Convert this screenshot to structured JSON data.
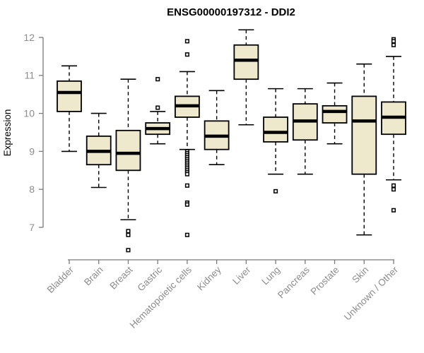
{
  "chart_data": {
    "type": "boxplot",
    "title": "ENSG00000197312 - DDI2",
    "xlabel": "",
    "ylabel": "Expression",
    "y_ticks": [
      7,
      8,
      9,
      10,
      11,
      12
    ],
    "ylim": [
      6.4,
      12.2
    ],
    "grid": false,
    "legend": "none",
    "categories": [
      "Bladder",
      "Brain",
      "Breast",
      "Gastric",
      "Hematopoietic cells",
      "Kidney",
      "Liver",
      "Lung",
      "Pancreas",
      "Prostate",
      "Skin",
      "Unknown / Other"
    ],
    "boxes": [
      {
        "label": "Bladder",
        "low": 9.0,
        "q1": 10.05,
        "median": 10.55,
        "q3": 10.85,
        "high": 11.25,
        "outliers": []
      },
      {
        "label": "Brain",
        "low": 8.05,
        "q1": 8.65,
        "median": 9.0,
        "q3": 9.4,
        "high": 10.0,
        "outliers": []
      },
      {
        "label": "Breast",
        "low": 7.2,
        "q1": 8.5,
        "median": 8.95,
        "q3": 9.55,
        "high": 10.9,
        "outliers": [
          6.9,
          6.8,
          6.4
        ]
      },
      {
        "label": "Gastric",
        "low": 9.2,
        "q1": 9.45,
        "median": 9.6,
        "q3": 9.75,
        "high": 10.05,
        "outliers": [
          10.9,
          10.15
        ]
      },
      {
        "label": "Hematopoietic cells",
        "low": 9.05,
        "q1": 9.9,
        "median": 10.2,
        "q3": 10.45,
        "high": 11.1,
        "outliers": [
          11.9,
          11.55,
          9.0,
          8.95,
          8.9,
          8.85,
          8.8,
          8.75,
          8.7,
          8.65,
          8.6,
          8.55,
          8.5,
          8.45,
          8.4,
          8.1,
          7.65,
          7.6,
          6.8
        ]
      },
      {
        "label": "Kidney",
        "low": 8.65,
        "q1": 9.05,
        "median": 9.4,
        "q3": 9.8,
        "high": 10.6,
        "outliers": []
      },
      {
        "label": "Liver",
        "low": 9.7,
        "q1": 10.9,
        "median": 11.4,
        "q3": 11.8,
        "high": 12.2,
        "outliers": []
      },
      {
        "label": "Lung",
        "low": 8.4,
        "q1": 9.25,
        "median": 9.5,
        "q3": 9.9,
        "high": 10.65,
        "outliers": [
          7.95
        ]
      },
      {
        "label": "Pancreas",
        "low": 8.4,
        "q1": 9.3,
        "median": 9.8,
        "q3": 10.25,
        "high": 10.65,
        "outliers": []
      },
      {
        "label": "Prostate",
        "low": 9.2,
        "q1": 9.75,
        "median": 10.05,
        "q3": 10.2,
        "high": 10.8,
        "outliers": []
      },
      {
        "label": "Skin",
        "low": 6.8,
        "q1": 8.4,
        "median": 9.8,
        "q3": 10.45,
        "high": 11.3,
        "outliers": []
      },
      {
        "label": "Unknown / Other",
        "low": 8.25,
        "q1": 9.45,
        "median": 9.9,
        "q3": 10.3,
        "high": 11.5,
        "outliers": [
          11.95,
          11.9,
          11.8,
          8.1,
          8.0,
          7.45
        ]
      }
    ],
    "colors": {
      "box_fill": "#EEE8CD",
      "box_line": "#000000",
      "axis": "#7A7A7A",
      "axis_text": "#8C8C8C",
      "title_text": "#000000"
    }
  }
}
